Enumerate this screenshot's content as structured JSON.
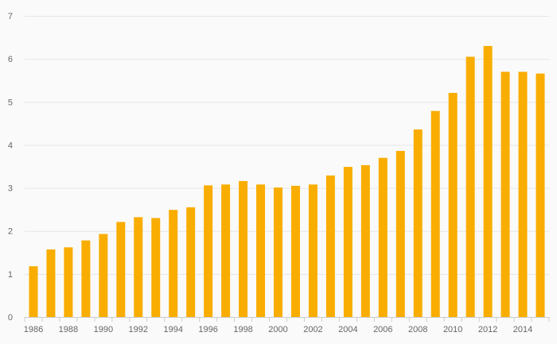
{
  "chart_data": {
    "type": "bar",
    "title": "",
    "xlabel": "",
    "ylabel": "",
    "categories": [
      "1986",
      "1987",
      "1988",
      "1989",
      "1990",
      "1991",
      "1992",
      "1993",
      "1994",
      "1995",
      "1996",
      "1997",
      "1998",
      "1999",
      "2000",
      "2001",
      "2002",
      "2003",
      "2004",
      "2005",
      "2006",
      "2007",
      "2008",
      "2009",
      "2010",
      "2011",
      "2012",
      "2013",
      "2014",
      "2015"
    ],
    "x_tick_labels": [
      "1986",
      "1988",
      "1990",
      "1992",
      "1994",
      "1996",
      "1998",
      "2000",
      "2002",
      "2004",
      "2006",
      "2008",
      "2010",
      "2012",
      "2014"
    ],
    "values": [
      1.18,
      1.57,
      1.62,
      1.78,
      1.93,
      2.21,
      2.32,
      2.3,
      2.49,
      2.55,
      3.06,
      3.08,
      3.16,
      3.08,
      3.01,
      3.05,
      3.08,
      3.29,
      3.49,
      3.53,
      3.7,
      3.86,
      4.36,
      4.79,
      5.21,
      6.05,
      6.3,
      5.7,
      5.7,
      5.66
    ],
    "ylim": [
      0,
      7
    ],
    "y_ticks": [
      0,
      1,
      2,
      3,
      4,
      5,
      6,
      7
    ],
    "grid": true,
    "legend": "none",
    "bar_color": "#f9ad00"
  }
}
